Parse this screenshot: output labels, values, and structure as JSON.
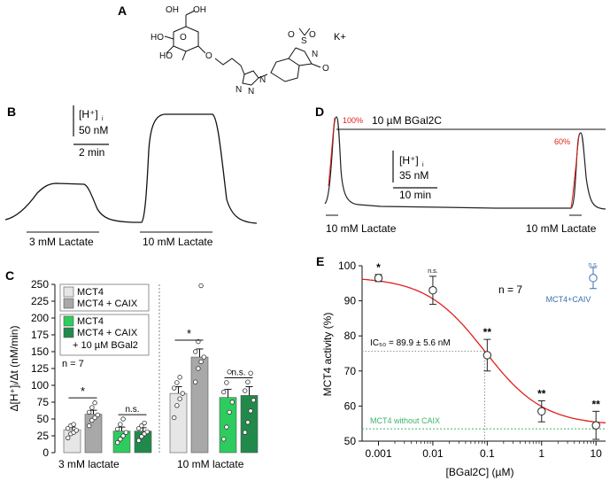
{
  "panel_labels": {
    "a": "A",
    "b": "B",
    "c": "C",
    "d": "D",
    "e": "E"
  },
  "panel_a": {
    "counter_ion": "K+",
    "atoms": {
      "o_ring": "O",
      "oh1": "OH",
      "oh2": "OH",
      "ho1": "HO",
      "ho2": "HO",
      "o_link": "O",
      "n1": "N",
      "n2": "N",
      "n3": "N",
      "s": "S",
      "so_o1": "O",
      "so_o2": "O",
      "n_imide": "N",
      "o_carbonyl": "O"
    }
  },
  "panel_b": {
    "scale_species": "[H⁺]",
    "scale_sub": "i",
    "scale_conc": "50 nM",
    "scale_time": "2 min",
    "labels": [
      "3 mM Lactate",
      "10 mM Lactate"
    ]
  },
  "panel_d": {
    "treatment": "10 µM BGal2C",
    "pct1": "100%",
    "pct2": "60%",
    "scale_species": "[H⁺]",
    "scale_sub": "i",
    "scale_conc": "35 nM",
    "scale_time": "10 min",
    "labels": [
      "10 mM Lactate",
      "10 mM Lactate"
    ],
    "colors": {
      "fit": "#e0201b"
    }
  },
  "chart_data": [
    {
      "panel": "C",
      "type": "bar",
      "ylabel": "Δ[H⁺]ᵢ/Δt (nM/min)",
      "ylim": [
        0,
        250
      ],
      "yticks": [
        0,
        25,
        50,
        75,
        100,
        125,
        150,
        175,
        200,
        225,
        250
      ],
      "groups": [
        "3 mM lactate",
        "10 mM lactate"
      ],
      "series": [
        {
          "name": "MCT4",
          "color": "#e6e6e6",
          "values": [
            34,
            88
          ],
          "errors": [
            4,
            10
          ]
        },
        {
          "name": "MCT4 + CAIX",
          "color": "#a8a8a8",
          "values": [
            57,
            142
          ],
          "errors": [
            6,
            12
          ]
        },
        {
          "name": "MCT4",
          "color": "#2ecc5f",
          "values": [
            32,
            82
          ],
          "errors": [
            6,
            12
          ]
        },
        {
          "name": "MCT4 + CAIX",
          "color": "#218a4b",
          "values": [
            32,
            85
          ],
          "errors": [
            5,
            13
          ]
        }
      ],
      "legend_extra": "+ 10 µM BGal2",
      "note": "n = 7",
      "significance": [
        {
          "group": 0,
          "label": "*"
        },
        {
          "group": 0,
          "label": "n.s."
        },
        {
          "group": 1,
          "label": "*"
        },
        {
          "group": 1,
          "label": "n.s."
        }
      ],
      "points": [
        [
          [
            22,
            28,
            30,
            33,
            36,
            40,
            42
          ],
          [
            40,
            48,
            52,
            56,
            60,
            67,
            74
          ],
          [
            15,
            20,
            25,
            30,
            35,
            42,
            50
          ],
          [
            18,
            24,
            28,
            31,
            36,
            40,
            44
          ]
        ],
        [
          [
            52,
            70,
            80,
            88,
            96,
            104,
            112
          ],
          [
            105,
            125,
            135,
            142,
            150,
            165,
            248
          ],
          [
            20,
            38,
            60,
            75,
            90,
            104,
            120
          ],
          [
            30,
            45,
            62,
            78,
            92,
            105,
            118
          ]
        ]
      ]
    },
    {
      "panel": "E",
      "type": "scatter",
      "xlabel": "[BGal2C] (µM)",
      "ylabel": "MCT4 activity (%)",
      "xscale": "log",
      "xlim": [
        0.0005,
        15
      ],
      "ylim": [
        50,
        100
      ],
      "xticks": [
        0.001,
        0.01,
        0.1,
        1,
        10
      ],
      "xticklabels": [
        "0.001",
        "0.01",
        "0.1",
        "1",
        "10"
      ],
      "yticks": [
        50,
        60,
        70,
        80,
        90,
        100
      ],
      "series": [
        {
          "name": "",
          "x": [
            0.001,
            0.01,
            0.1,
            1,
            10
          ],
          "y": [
            96.5,
            93,
            74.5,
            58.5,
            54.5
          ],
          "err": [
            1,
            4,
            4.5,
            3,
            4
          ],
          "sig": [
            "*",
            "n.s.",
            "**",
            "**",
            "**"
          ],
          "color": "#222222"
        }
      ],
      "fit": {
        "bottom": 54.5,
        "top": 96.8,
        "ic50": 0.0899,
        "hill": 0.8,
        "color": "#e0201b"
      },
      "ic50_label": "IC₅₀ = 89.9 ± 5.6 nM",
      "n_label": "n = 7",
      "caiv": {
        "label": "MCT4+CAIV",
        "sig": "n.s.",
        "y": 96.5,
        "err": 3,
        "color": "#3a6fb0"
      },
      "baseline": {
        "label": "MCT4 without CAIX",
        "y": 53.5,
        "color": "#3db36a"
      }
    }
  ]
}
